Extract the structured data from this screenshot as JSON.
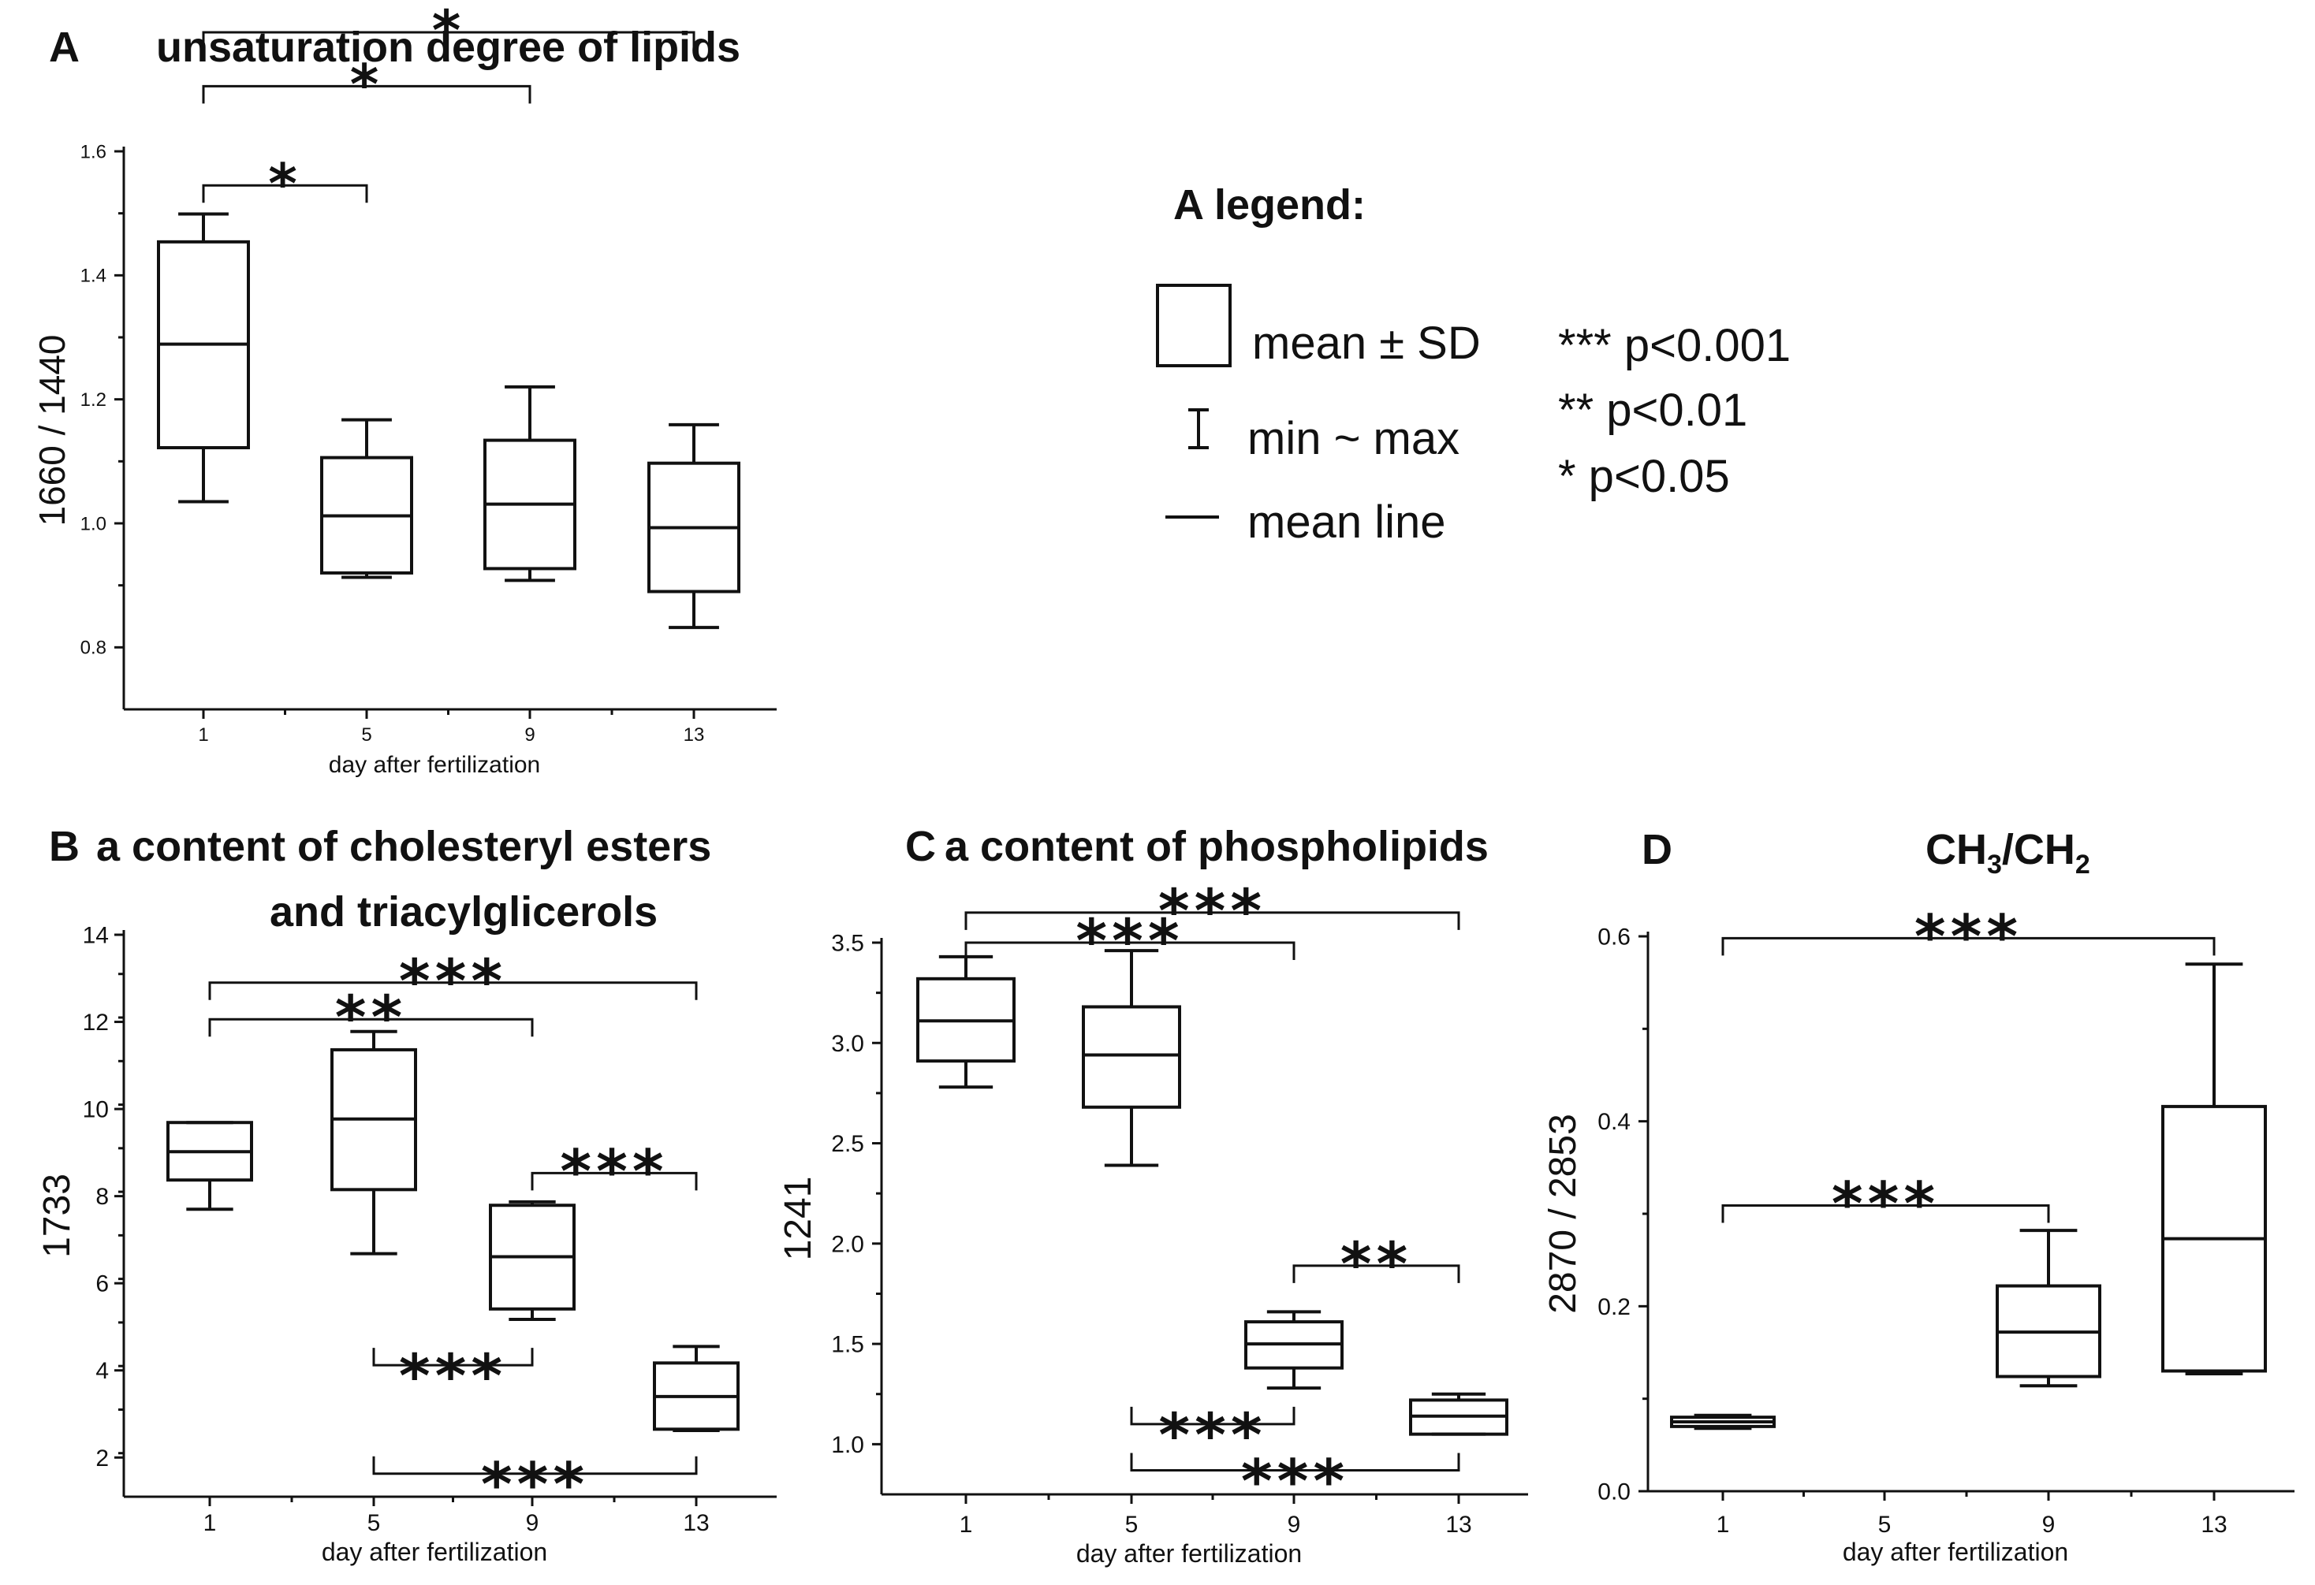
{
  "legend": {
    "title": "A legend:",
    "box_label": "mean ± SD",
    "whisker_label": "min ~ max",
    "line_label": "mean line",
    "sig3": "*** p<0.001",
    "sig2": "** p<0.01",
    "sig1": "* p<0.05"
  },
  "chart_data": [
    {
      "id": "A",
      "type": "box",
      "letter": "A",
      "title": "unsaturation degree of lipids",
      "title2": "",
      "xlabel": "day after fertilization",
      "ylabel": "1660 / 1440",
      "categories": [
        "1",
        "5",
        "9",
        "13"
      ],
      "ylim": [
        0.7,
        1.6
      ],
      "yticks": [
        0.8,
        1.0,
        1.2,
        1.4,
        1.6
      ],
      "ytick_labels": [
        "0.8",
        "1.0",
        "1.2",
        "1.4",
        "1.6"
      ],
      "minor": 0.1,
      "boxes": [
        {
          "min": 1.035,
          "q1": 1.122,
          "mean": 1.289,
          "q3": 1.454,
          "max": 1.499
        },
        {
          "min": 0.913,
          "q1": 0.92,
          "mean": 1.012,
          "q3": 1.106,
          "max": 1.167
        },
        {
          "min": 0.908,
          "q1": 0.927,
          "mean": 1.031,
          "q3": 1.134,
          "max": 1.22
        },
        {
          "min": 0.832,
          "q1": 0.89,
          "mean": 0.993,
          "q3": 1.097,
          "max": 1.159
        }
      ],
      "brackets": [
        {
          "from": 0,
          "to": 3,
          "y": 1.792,
          "label": "*"
        },
        {
          "from": 0,
          "to": 2,
          "y": 1.705,
          "label": "*"
        },
        {
          "from": 0,
          "to": 1,
          "y": 1.545,
          "label": "*"
        }
      ]
    },
    {
      "id": "B",
      "type": "box",
      "letter": "B",
      "title": "a content of cholesteryl esters",
      "title2": "and triacylglicerols",
      "xlabel": "day after fertilization",
      "ylabel": "1733",
      "categories": [
        "1",
        "5",
        "9",
        "13"
      ],
      "ylim": [
        1.1,
        14
      ],
      "yticks": [
        2,
        4,
        6,
        8,
        10,
        12,
        14
      ],
      "ytick_labels": [
        "2",
        "4",
        "6",
        "8",
        "10",
        "12",
        "14"
      ],
      "minor": 1,
      "boxes": [
        {
          "min": 7.7,
          "q1": 8.37,
          "mean": 9.02,
          "q3": 9.69,
          "max": 9.69
        },
        {
          "min": 6.68,
          "q1": 8.15,
          "mean": 9.77,
          "q3": 11.36,
          "max": 11.78
        },
        {
          "min": 5.17,
          "q1": 5.41,
          "mean": 6.61,
          "q3": 7.79,
          "max": 7.87
        },
        {
          "min": 2.62,
          "q1": 2.65,
          "mean": 3.4,
          "q3": 4.17,
          "max": 4.55
        }
      ],
      "brackets": [
        {
          "from": 0,
          "to": 3,
          "y": 12.9,
          "label": "***"
        },
        {
          "from": 0,
          "to": 2,
          "y": 12.06,
          "label": "**"
        },
        {
          "from": 2,
          "to": 3,
          "y": 8.53,
          "label": "***"
        },
        {
          "from": 1,
          "to": 2,
          "y": 4.12,
          "label": "***",
          "down": true
        },
        {
          "from": 1,
          "to": 3,
          "y": 1.63,
          "label": "***",
          "down": true
        }
      ]
    },
    {
      "id": "C",
      "type": "box",
      "letter": "C",
      "title": "a content of phospholipids",
      "title2": "",
      "xlabel": "day after fertilization",
      "ylabel": "1241",
      "categories": [
        "1",
        "5",
        "9",
        "13"
      ],
      "ylim": [
        0.75,
        3.7
      ],
      "yticks": [
        1.0,
        1.5,
        2.0,
        2.5,
        3.0,
        3.5
      ],
      "ytick_labels": [
        "1.0",
        "1.5",
        "2.0",
        "2.5",
        "3.0",
        "3.5"
      ],
      "minor": 0.25,
      "boxes": [
        {
          "min": 2.78,
          "q1": 2.91,
          "mean": 3.11,
          "q3": 3.32,
          "max": 3.43
        },
        {
          "min": 2.39,
          "q1": 2.68,
          "mean": 2.94,
          "q3": 3.18,
          "max": 3.46
        },
        {
          "min": 1.28,
          "q1": 1.38,
          "mean": 1.5,
          "q3": 1.61,
          "max": 1.66
        },
        {
          "min": 1.05,
          "q1": 1.05,
          "mean": 1.14,
          "q3": 1.22,
          "max": 1.25
        }
      ],
      "brackets": [
        {
          "from": 0,
          "to": 3,
          "y": 3.65,
          "label": "***"
        },
        {
          "from": 0,
          "to": 2,
          "y": 3.5,
          "label": "***"
        },
        {
          "from": 2,
          "to": 3,
          "y": 1.89,
          "label": "**"
        },
        {
          "from": 1,
          "to": 2,
          "y": 1.1,
          "label": "***",
          "down": true
        },
        {
          "from": 1,
          "to": 3,
          "y": 0.87,
          "label": "***",
          "down": true
        }
      ]
    },
    {
      "id": "D",
      "type": "box",
      "letter": "D",
      "title": "CH3/CH2",
      "title2": "",
      "xlabel": "day after fertilization",
      "ylabel": "2870 / 2853",
      "categories": [
        "1",
        "5",
        "9",
        "13"
      ],
      "ylim": [
        0.0,
        0.62
      ],
      "yticks": [
        0.0,
        0.2,
        0.4,
        0.6
      ],
      "ytick_labels": [
        "0.0",
        "0.2",
        "0.4",
        "0.6"
      ],
      "minor": 0.1,
      "boxes": [
        {
          "min": 0.068,
          "q1": 0.07,
          "mean": 0.075,
          "q3": 0.08,
          "max": 0.082
        },
        null,
        {
          "min": 0.114,
          "q1": 0.124,
          "mean": 0.172,
          "q3": 0.222,
          "max": 0.282
        },
        {
          "min": 0.127,
          "q1": 0.13,
          "mean": 0.273,
          "q3": 0.416,
          "max": 0.57
        }
      ],
      "brackets": [
        {
          "from": 0,
          "to": 3,
          "y": 0.598,
          "label": "***"
        },
        {
          "from": 0,
          "to": 2,
          "y": 0.309,
          "label": "***"
        }
      ]
    }
  ]
}
